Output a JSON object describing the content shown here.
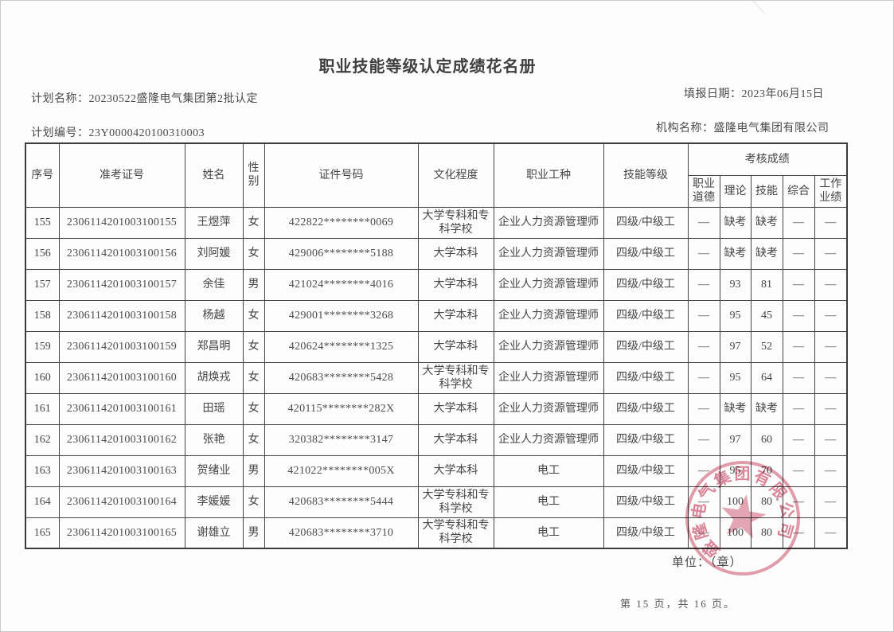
{
  "page": {
    "title": "职业技能等级认定成绩花名册",
    "plan_name_label": "计划名称：",
    "plan_name": "20230522盛隆电气集团第2批认定",
    "fill_date_label": "填报日期：",
    "fill_date": "2023年06月15日",
    "plan_code_label": "计划编号：",
    "plan_code": "23Y0000420100310003",
    "org_label": "机构名称：",
    "org_name": "盛隆电气集团有限公司",
    "unit_seal_label": "单位：（章）",
    "page_footer": "第 15 页，共 16 页。"
  },
  "table": {
    "headers": {
      "seq": "序号",
      "ticket": "准考证号",
      "name": "姓名",
      "gender": "性别",
      "id": "证件号码",
      "edu": "文化程度",
      "occ": "职业工种",
      "level": "技能等级",
      "scores_group": "考核成绩",
      "ethics": "职业道德",
      "theory": "理论",
      "skill": "技能",
      "comp": "综合",
      "work": "工作业绩"
    },
    "rows": [
      {
        "seq": "155",
        "ticket": "2306114201003100155",
        "name": "王煜萍",
        "gender": "女",
        "id": "422822********0069",
        "edu": "大学专科和专科学校",
        "occ": "企业人力资源管理师",
        "level": "四级/中级工",
        "ethics": "—",
        "theory": "缺考",
        "skill": "缺考",
        "comp": "—",
        "work": "—"
      },
      {
        "seq": "156",
        "ticket": "2306114201003100156",
        "name": "刘阿媛",
        "gender": "女",
        "id": "429006********5188",
        "edu": "大学本科",
        "occ": "企业人力资源管理师",
        "level": "四级/中级工",
        "ethics": "—",
        "theory": "缺考",
        "skill": "缺考",
        "comp": "—",
        "work": "—"
      },
      {
        "seq": "157",
        "ticket": "2306114201003100157",
        "name": "余佳",
        "gender": "男",
        "id": "421024********4016",
        "edu": "大学本科",
        "occ": "企业人力资源管理师",
        "level": "四级/中级工",
        "ethics": "—",
        "theory": "93",
        "skill": "81",
        "comp": "—",
        "work": "—"
      },
      {
        "seq": "158",
        "ticket": "2306114201003100158",
        "name": "杨越",
        "gender": "女",
        "id": "429001********3268",
        "edu": "大学本科",
        "occ": "企业人力资源管理师",
        "level": "四级/中级工",
        "ethics": "—",
        "theory": "95",
        "skill": "45",
        "comp": "—",
        "work": "—"
      },
      {
        "seq": "159",
        "ticket": "2306114201003100159",
        "name": "郑昌明",
        "gender": "女",
        "id": "420624********1325",
        "edu": "大学本科",
        "occ": "企业人力资源管理师",
        "level": "四级/中级工",
        "ethics": "—",
        "theory": "97",
        "skill": "52",
        "comp": "—",
        "work": "—"
      },
      {
        "seq": "160",
        "ticket": "2306114201003100160",
        "name": "胡焕戎",
        "gender": "女",
        "id": "420683********5428",
        "edu": "大学专科和专科学校",
        "occ": "企业人力资源管理师",
        "level": "四级/中级工",
        "ethics": "—",
        "theory": "95",
        "skill": "64",
        "comp": "—",
        "work": "—"
      },
      {
        "seq": "161",
        "ticket": "2306114201003100161",
        "name": "田瑶",
        "gender": "女",
        "id": "420115********282X",
        "edu": "大学本科",
        "occ": "企业人力资源管理师",
        "level": "四级/中级工",
        "ethics": "—",
        "theory": "缺考",
        "skill": "缺考",
        "comp": "—",
        "work": "—"
      },
      {
        "seq": "162",
        "ticket": "2306114201003100162",
        "name": "张艳",
        "gender": "女",
        "id": "320382********3147",
        "edu": "大学本科",
        "occ": "企业人力资源管理师",
        "level": "四级/中级工",
        "ethics": "—",
        "theory": "97",
        "skill": "60",
        "comp": "—",
        "work": "—"
      },
      {
        "seq": "163",
        "ticket": "2306114201003100163",
        "name": "贺绪业",
        "gender": "男",
        "id": "421022********005X",
        "edu": "大学本科",
        "occ": "电工",
        "level": "四级/中级工",
        "ethics": "—",
        "theory": "95",
        "skill": "70",
        "comp": "—",
        "work": "—"
      },
      {
        "seq": "164",
        "ticket": "2306114201003100164",
        "name": "李媛媛",
        "gender": "女",
        "id": "420683********5444",
        "edu": "大学专科和专科学校",
        "occ": "电工",
        "level": "四级/中级工",
        "ethics": "—",
        "theory": "100",
        "skill": "80",
        "comp": "—",
        "work": "—"
      },
      {
        "seq": "165",
        "ticket": "2306114201003100165",
        "name": "谢雄立",
        "gender": "男",
        "id": "420683********3710",
        "edu": "大学专科和专科学校",
        "occ": "电工",
        "level": "四级/中级工",
        "ethics": "—",
        "theory": "100",
        "skill": "80",
        "comp": "—",
        "work": "—"
      }
    ]
  },
  "stamp": {
    "text": "盛隆电气集团有限公司",
    "color": "#c63c58"
  }
}
